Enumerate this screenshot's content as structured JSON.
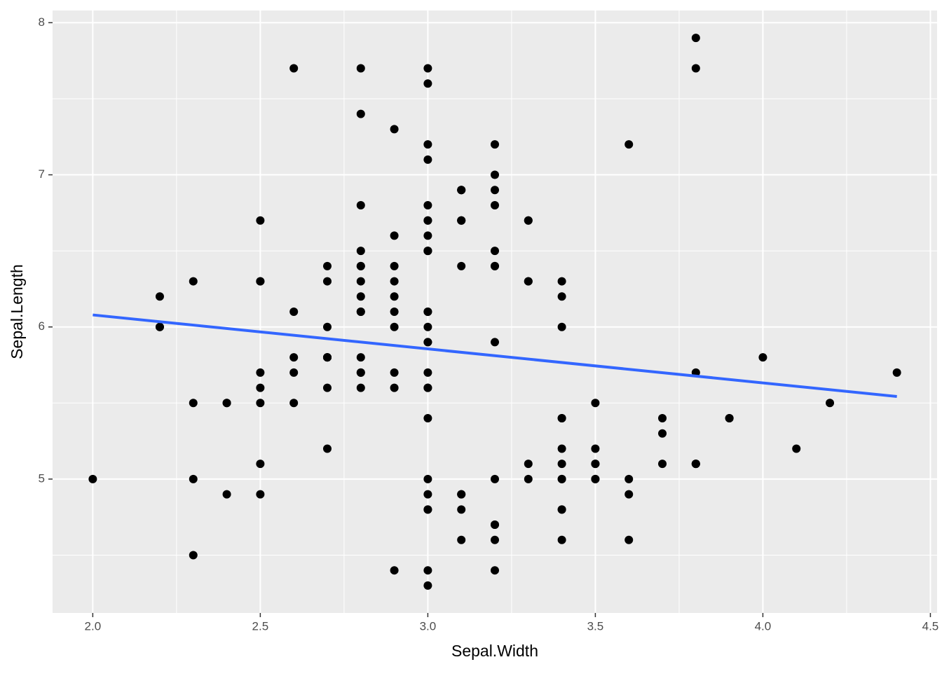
{
  "chart_data": {
    "type": "scatter",
    "x_label": "Sepal.Width",
    "y_label": "Sepal.Length",
    "xlim": [
      1.88,
      4.52
    ],
    "ylim": [
      4.12,
      8.08
    ],
    "xticks": [
      {
        "value": 2,
        "label": "2.0"
      },
      2.5,
      {
        "value": 3,
        "label": "3.0"
      },
      3.5,
      {
        "value": 4,
        "label": "4.0"
      },
      4.5
    ],
    "yticks": [
      5,
      6,
      7,
      8
    ],
    "xminorticks": [
      2.25,
      2.75,
      3.25,
      3.75,
      4.25
    ],
    "yminorticks": [
      4.5,
      5.5,
      6.5,
      7.5
    ],
    "grid": true,
    "point_color": "#000000",
    "x": [
      3.5,
      3.0,
      3.2,
      3.1,
      3.6,
      3.9,
      3.4,
      3.4,
      2.9,
      3.1,
      3.7,
      3.4,
      3.0,
      3.0,
      4.0,
      4.4,
      3.9,
      3.5,
      3.8,
      3.8,
      3.4,
      3.7,
      3.6,
      3.3,
      3.4,
      3.0,
      3.4,
      3.5,
      3.4,
      3.2,
      3.1,
      3.4,
      4.1,
      4.2,
      3.1,
      3.2,
      3.5,
      3.6,
      3.0,
      3.4,
      3.5,
      2.3,
      3.2,
      3.5,
      3.8,
      3.0,
      3.8,
      3.2,
      3.7,
      3.3,
      3.2,
      3.2,
      3.1,
      2.3,
      2.8,
      2.8,
      3.3,
      2.4,
      2.9,
      2.7,
      2.0,
      3.0,
      2.2,
      2.9,
      2.9,
      3.1,
      3.0,
      2.7,
      2.2,
      2.5,
      3.2,
      2.8,
      2.5,
      2.8,
      2.9,
      3.0,
      2.8,
      3.0,
      2.9,
      2.6,
      2.4,
      2.4,
      2.7,
      2.7,
      3.0,
      3.4,
      3.1,
      2.3,
      3.0,
      2.5,
      2.6,
      3.0,
      2.6,
      2.3,
      2.7,
      3.0,
      2.9,
      2.9,
      2.5,
      2.8,
      3.3,
      2.7,
      3.0,
      2.9,
      3.0,
      3.0,
      2.5,
      2.9,
      2.5,
      3.6,
      3.2,
      2.7,
      3.0,
      2.5,
      2.8,
      3.2,
      3.0,
      3.8,
      2.6,
      2.2,
      3.2,
      2.8,
      2.8,
      2.7,
      3.3,
      3.2,
      2.8,
      3.0,
      2.8,
      3.0,
      2.8,
      3.8,
      2.8,
      2.8,
      2.6,
      3.0,
      3.4,
      3.1,
      3.0,
      3.1,
      3.1,
      3.1,
      2.7,
      3.2,
      3.3,
      3.0,
      2.5,
      3.0,
      3.4,
      3.0
    ],
    "y": [
      5.1,
      4.9,
      4.7,
      4.6,
      5.0,
      5.4,
      4.6,
      5.0,
      4.4,
      4.9,
      5.4,
      4.8,
      4.8,
      4.3,
      5.8,
      5.7,
      5.4,
      5.1,
      5.7,
      5.1,
      5.4,
      5.1,
      4.6,
      5.1,
      4.8,
      5.0,
      5.0,
      5.2,
      5.2,
      4.7,
      4.8,
      5.4,
      5.2,
      5.5,
      4.9,
      5.0,
      5.5,
      4.9,
      4.4,
      5.1,
      5.0,
      4.5,
      4.4,
      5.0,
      5.1,
      4.8,
      5.1,
      4.6,
      5.3,
      5.0,
      7.0,
      6.4,
      6.9,
      5.5,
      6.5,
      5.7,
      6.3,
      4.9,
      6.6,
      5.2,
      5.0,
      5.9,
      6.0,
      6.1,
      5.6,
      6.7,
      5.6,
      5.8,
      6.2,
      5.6,
      5.9,
      6.1,
      6.3,
      6.1,
      6.4,
      6.6,
      6.8,
      6.7,
      6.0,
      5.7,
      5.5,
      5.5,
      5.8,
      6.0,
      5.4,
      6.0,
      6.7,
      6.3,
      5.6,
      5.5,
      5.5,
      6.1,
      5.8,
      5.0,
      5.6,
      5.7,
      5.7,
      6.2,
      5.1,
      5.7,
      6.3,
      5.8,
      7.1,
      6.3,
      6.5,
      7.6,
      4.9,
      7.3,
      6.7,
      7.2,
      6.5,
      6.4,
      6.8,
      5.7,
      5.8,
      6.4,
      6.5,
      7.7,
      7.7,
      6.0,
      6.9,
      5.6,
      7.7,
      6.3,
      6.7,
      7.2,
      6.2,
      6.1,
      6.4,
      7.2,
      7.4,
      7.9,
      6.4,
      6.3,
      6.1,
      7.7,
      6.3,
      6.4,
      6.0,
      6.9,
      6.7,
      6.9,
      5.8,
      6.8,
      6.7,
      6.7,
      6.3,
      6.5,
      6.2,
      5.9
    ],
    "fit": {
      "color": "#3366ff",
      "x": [
        2.0,
        4.4
      ],
      "y": [
        6.079,
        5.543
      ]
    }
  }
}
